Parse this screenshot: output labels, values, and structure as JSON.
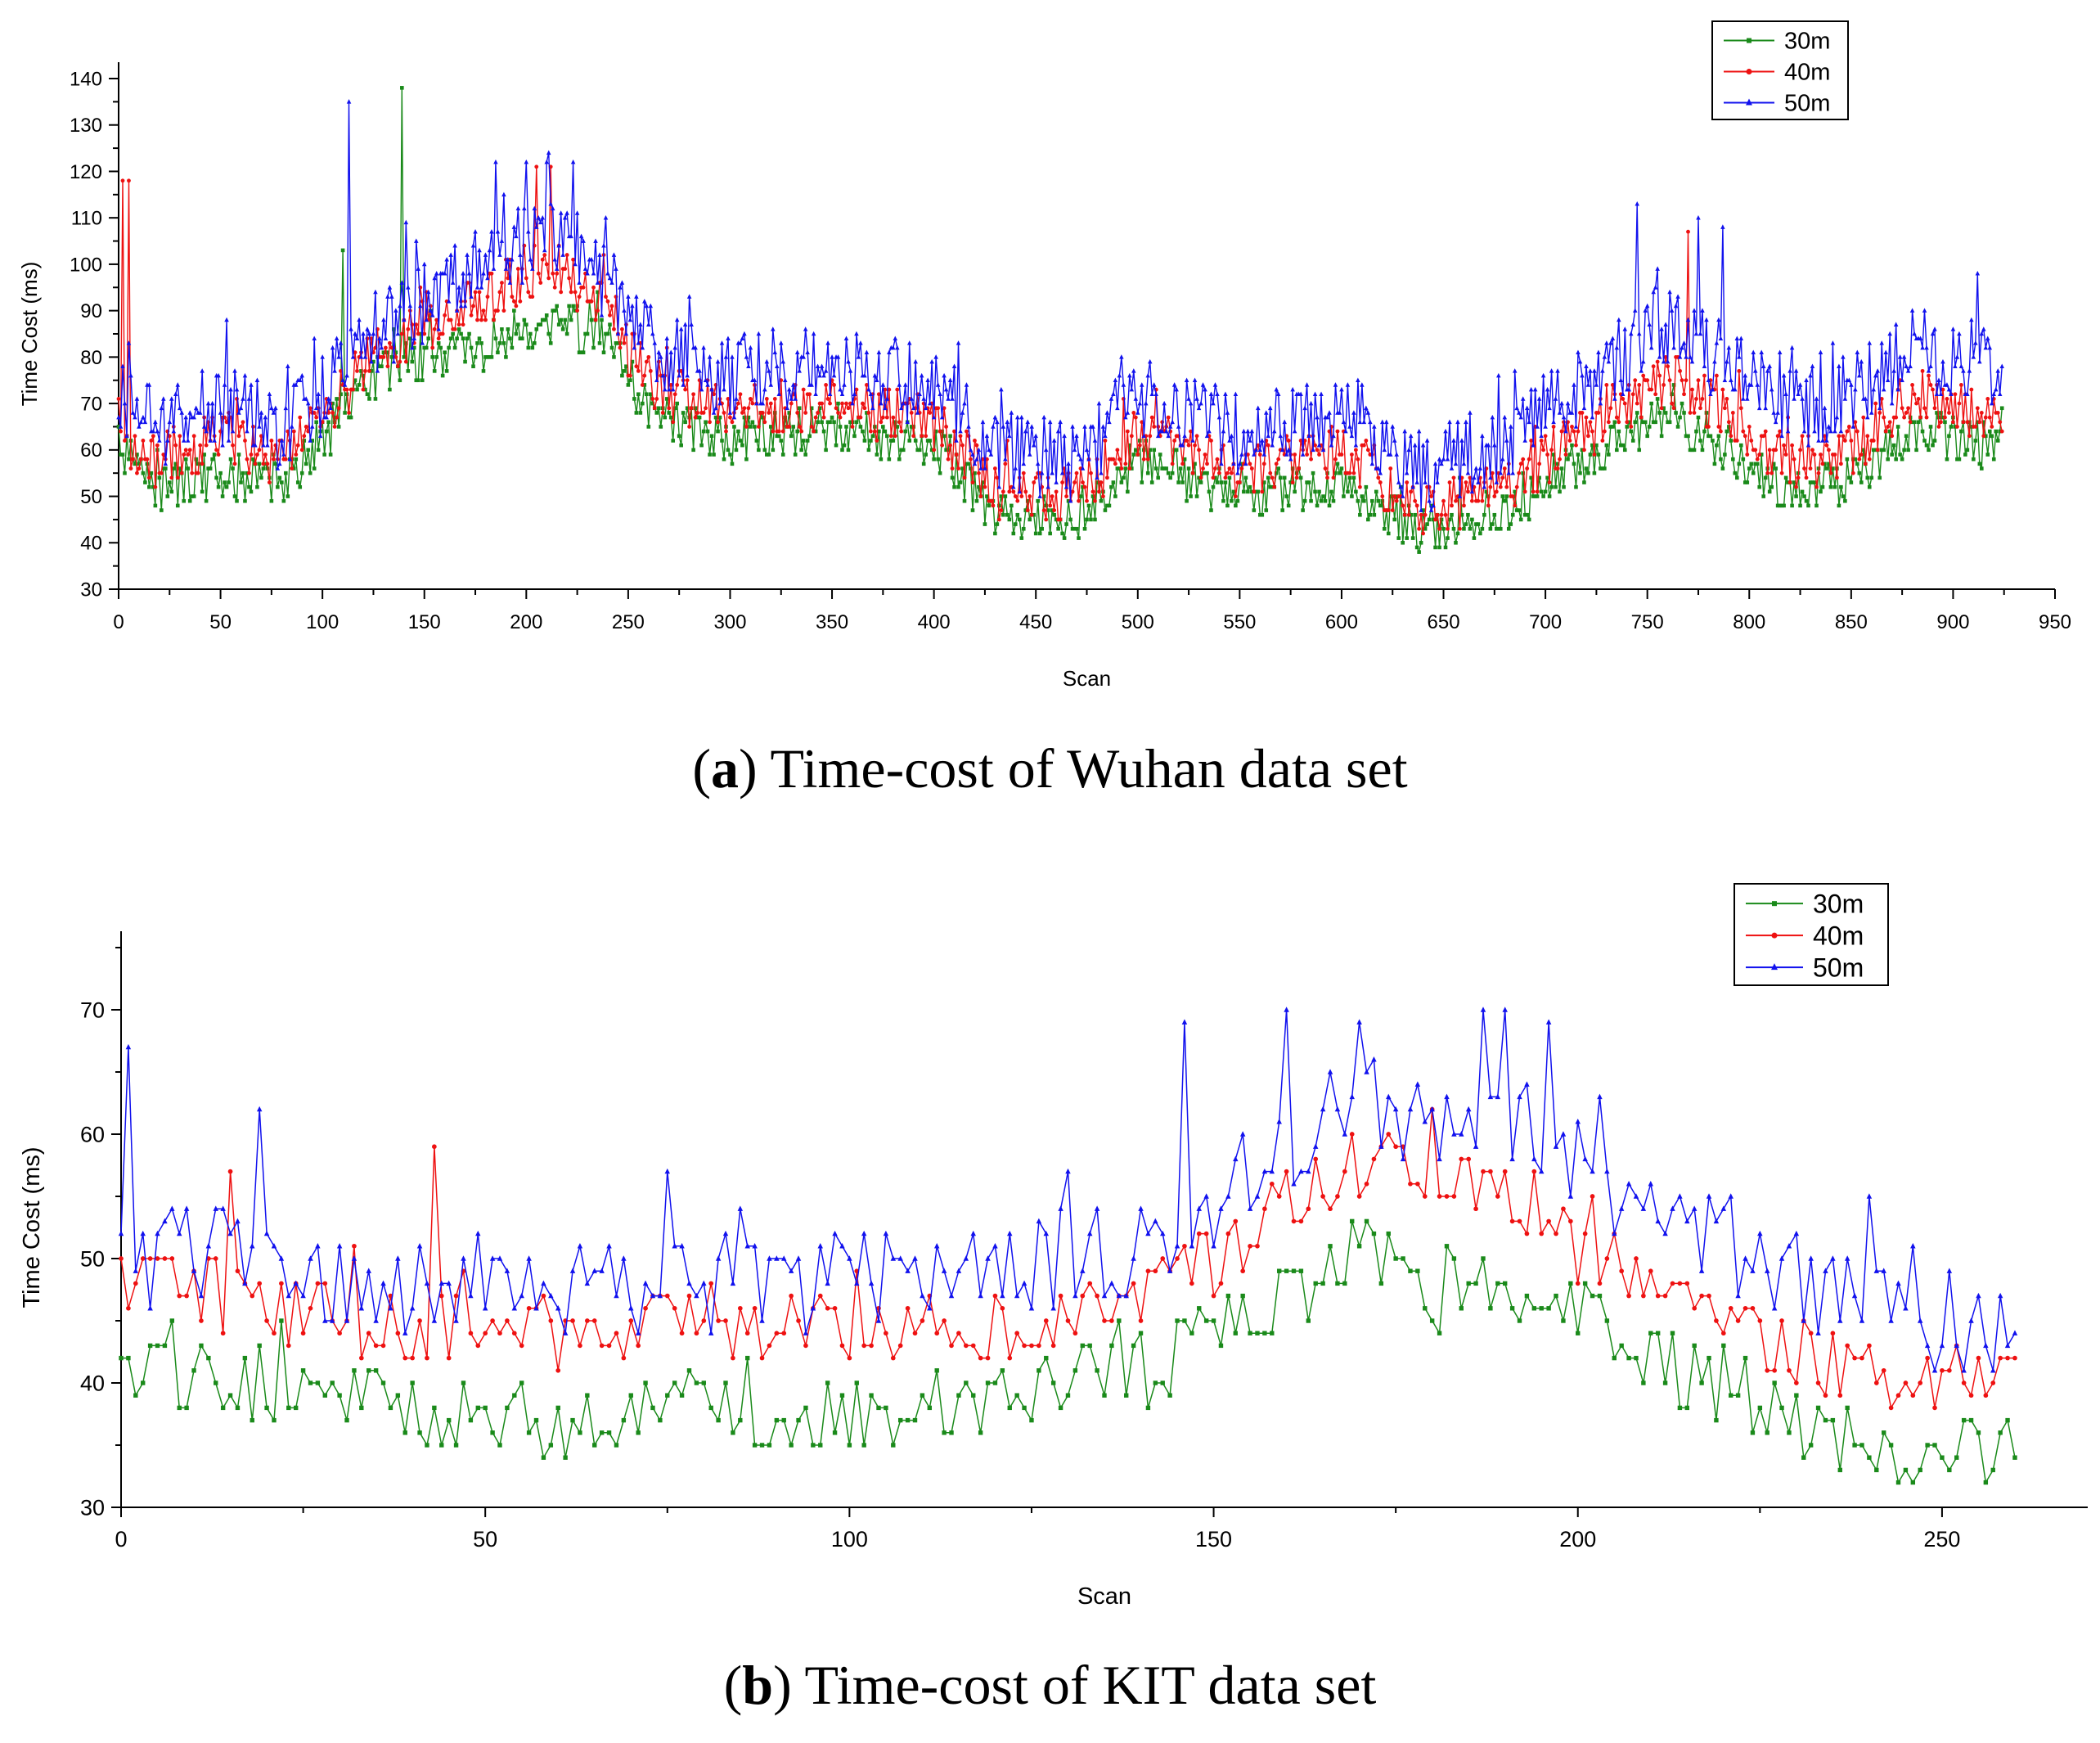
{
  "figure": {
    "panel_a_letter": "a",
    "panel_a_caption": "Time-cost of Wuhan data set",
    "panel_b_letter": "b",
    "panel_b_caption": "Time-cost of KIT data set"
  },
  "colors": {
    "s30": "#1a8a1a",
    "s40": "#ee1111",
    "s50": "#1111ee"
  },
  "chart_data": [
    {
      "type": "line",
      "title": "Time-cost of Wuhan data set",
      "xlabel": "Scan",
      "ylabel": "Time Cost (ms)",
      "xlim": [
        0,
        950
      ],
      "ylim": [
        30,
        140
      ],
      "xticks": [
        0,
        50,
        100,
        150,
        200,
        250,
        300,
        350,
        400,
        450,
        500,
        550,
        600,
        650,
        700,
        750,
        800,
        850,
        900,
        950
      ],
      "yticks": [
        30,
        40,
        50,
        60,
        70,
        80,
        90,
        100,
        110,
        120,
        130,
        140
      ],
      "legend": [
        "30m",
        "40m",
        "50m"
      ],
      "legend_position": "top-right",
      "n_scans": 925,
      "anchor_x": [
        0,
        20,
        50,
        80,
        100,
        120,
        150,
        180,
        210,
        240,
        260,
        300,
        350,
        400,
        430,
        470,
        500,
        550,
        600,
        640,
        680,
        720,
        760,
        790,
        820,
        850,
        880,
        925
      ],
      "series": [
        {
          "name": "30m",
          "anchors": [
            60,
            52,
            55,
            52,
            62,
            74,
            80,
            82,
            88,
            84,
            68,
            62,
            65,
            60,
            46,
            45,
            58,
            50,
            53,
            42,
            47,
            58,
            68,
            60,
            50,
            53,
            65,
            60
          ],
          "noise": 5,
          "spikes": [
            [
              139,
              138
            ],
            [
              110,
              103
            ]
          ]
        },
        {
          "name": "40m",
          "anchors": [
            62,
            58,
            62,
            58,
            66,
            78,
            86,
            92,
            100,
            90,
            74,
            68,
            70,
            66,
            51,
            50,
            64,
            56,
            60,
            47,
            52,
            64,
            76,
            68,
            57,
            60,
            72,
            66
          ],
          "noise": 6,
          "spikes": [
            [
              2,
              118
            ],
            [
              5,
              118
            ],
            [
              205,
              121
            ],
            [
              212,
              121
            ],
            [
              770,
              107
            ]
          ]
        },
        {
          "name": "50m",
          "anchors": [
            70,
            65,
            70,
            65,
            72,
            84,
            92,
            100,
            108,
            96,
            82,
            76,
            78,
            74,
            60,
            58,
            72,
            64,
            70,
            55,
            62,
            74,
            88,
            78,
            68,
            72,
            82,
            78
          ],
          "noise": 9,
          "spikes": [
            [
              113,
              135
            ],
            [
              185,
              122
            ],
            [
              200,
              122
            ],
            [
              210,
              122
            ],
            [
              223,
              122
            ],
            [
              745,
              113
            ],
            [
              775,
              110
            ],
            [
              787,
              108
            ]
          ]
        }
      ]
    },
    {
      "type": "line",
      "title": "Time-cost of KIT data set",
      "xlabel": "Scan",
      "ylabel": "Time Cost (ms)",
      "xlim": [
        0,
        270
      ],
      "ylim": [
        30,
        75
      ],
      "xticks": [
        0,
        50,
        100,
        150,
        200,
        250
      ],
      "yticks": [
        30,
        40,
        50,
        60,
        70
      ],
      "legend": [
        "30m",
        "40m",
        "50m"
      ],
      "legend_position": "top-right",
      "n_scans": 261,
      "anchor_x": [
        0,
        10,
        20,
        40,
        60,
        80,
        100,
        120,
        140,
        150,
        160,
        170,
        180,
        190,
        200,
        210,
        220,
        230,
        245,
        260
      ],
      "series": [
        {
          "name": "30m",
          "anchors": [
            43,
            40,
            40,
            37,
            37,
            38,
            37,
            39,
            41,
            44,
            46,
            51,
            47,
            47,
            47,
            42,
            40,
            37,
            34,
            35
          ],
          "noise": 3,
          "spikes": [
            [
              55,
              40
            ]
          ]
        },
        {
          "name": "40m",
          "anchors": [
            48,
            48,
            46,
            45,
            44,
            45,
            44,
            45,
            46,
            50,
            55,
            57,
            56,
            56,
            51,
            48,
            45,
            42,
            41,
            40
          ],
          "noise": 3,
          "spikes": [
            [
              15,
              57
            ],
            [
              43,
              59
            ],
            [
              180,
              62
            ]
          ]
        },
        {
          "name": "50m",
          "anchors": [
            50,
            51,
            48,
            48,
            47,
            48,
            48,
            49,
            51,
            55,
            59,
            63,
            61,
            62,
            58,
            54,
            52,
            48,
            45,
            44
          ],
          "noise": 4,
          "spikes": [
            [
              1,
              67
            ],
            [
              19,
              62
            ],
            [
              146,
              69
            ],
            [
              160,
              70
            ],
            [
              170,
              69
            ],
            [
              187,
              70
            ],
            [
              190,
              70
            ],
            [
              196,
              69
            ]
          ]
        }
      ]
    }
  ]
}
